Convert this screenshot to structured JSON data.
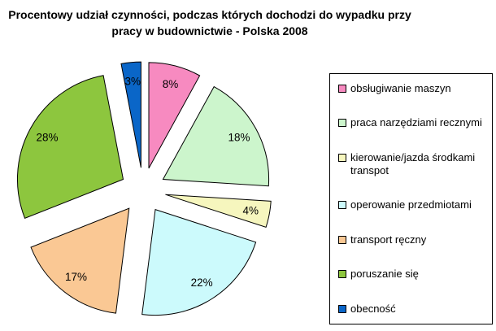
{
  "chart_data": {
    "type": "pie",
    "title": "Procentowy udział czynności, podczas których dochodzi do wypadku przy pracy w budownictwie - Polska 2008",
    "unit": "%",
    "exploded": true,
    "direction": "clockwise",
    "start_angle_deg": 0,
    "legend_position": "right",
    "slices": [
      {
        "label": "obsługiwanie maszyn",
        "value": 8,
        "data_label": "8%",
        "color": "#F78AC0"
      },
      {
        "label": "praca narzędziami recznymi",
        "value": 18,
        "data_label": "18%",
        "color": "#CCF5CC"
      },
      {
        "label": "kierowanie/jazda środkami transpot",
        "value": 4,
        "data_label": "4%",
        "color": "#F6F6BE"
      },
      {
        "label": "operowanie przedmiotami",
        "value": 22,
        "data_label": "22%",
        "color": "#CCFAFC"
      },
      {
        "label": "transport ręczny",
        "value": 17,
        "data_label": "17%",
        "color": "#FAC894"
      },
      {
        "label": "poruszanie się",
        "value": 28,
        "data_label": "28%",
        "color": "#8DC63E"
      },
      {
        "label": "obecność",
        "value": 3,
        "data_label": "3%",
        "color": "#0A66C8"
      }
    ],
    "colors": {
      "slice_border": "#000000",
      "legend_border": "#000000",
      "label_text": "#000000",
      "background": "#FFFFFF"
    }
  }
}
